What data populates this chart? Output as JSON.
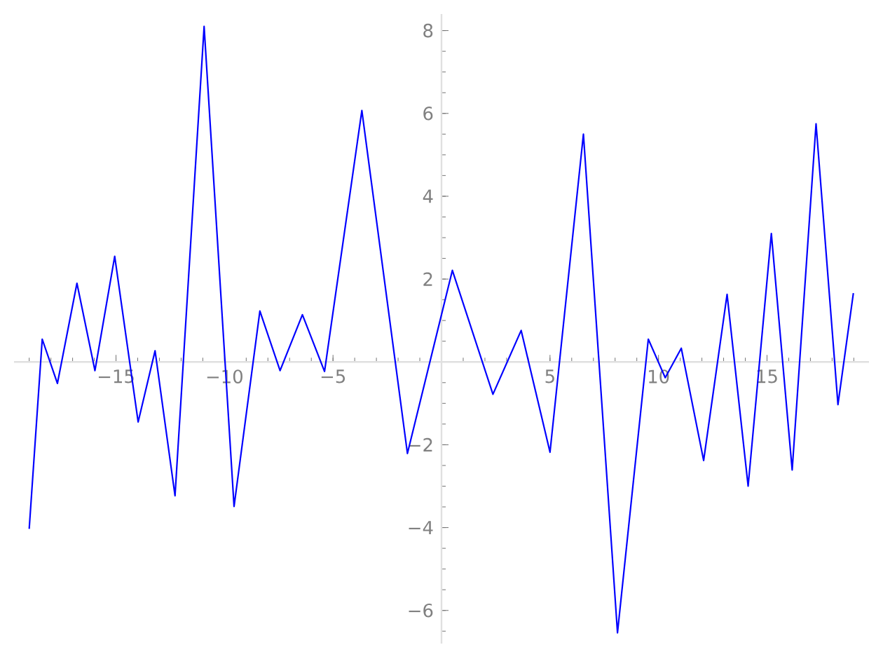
{
  "chart_data": {
    "type": "line",
    "x": [
      -19,
      -18.4,
      -17.7,
      -16.8,
      -15.97,
      -15.06,
      -13.98,
      -13.2,
      -12.28,
      -10.94,
      -9.56,
      -8.37,
      -7.44,
      -6.41,
      -5.39,
      -3.67,
      -1.57,
      0.5,
      2.37,
      3.67,
      5.0,
      6.54,
      8.11,
      9.53,
      10.31,
      11.05,
      12.08,
      13.16,
      14.13,
      15.2,
      16.16,
      17.26,
      18.27,
      18.98
    ],
    "series": [
      {
        "color": "#0000ff",
        "values": [
          -4.03,
          0.55,
          -0.52,
          1.9,
          -0.21,
          2.55,
          -1.45,
          0.27,
          -3.23,
          8.1,
          -3.49,
          1.23,
          -0.21,
          1.14,
          -0.23,
          6.07,
          -2.21,
          2.21,
          -0.78,
          0.76,
          -2.18,
          5.5,
          -6.54,
          0.55,
          -0.38,
          0.33,
          -2.38,
          1.63,
          -3.0,
          3.1,
          -2.61,
          5.75,
          -1.03,
          1.66
        ]
      }
    ],
    "xlim": [
      -19.7,
      19.7
    ],
    "ylim": [
      -6.8,
      8.4
    ],
    "xticks": [
      {
        "value": -15,
        "label": "−15"
      },
      {
        "value": -10,
        "label": "−10"
      },
      {
        "value": -5,
        "label": "−5"
      },
      5,
      10,
      15
    ],
    "yticks": [
      {
        "value": -6,
        "label": "−6"
      },
      {
        "value": -4,
        "label": "−4"
      },
      {
        "value": -2,
        "label": "−2"
      },
      2,
      4,
      6,
      8
    ],
    "grid": false,
    "marker": "none",
    "line_style": "solid"
  }
}
